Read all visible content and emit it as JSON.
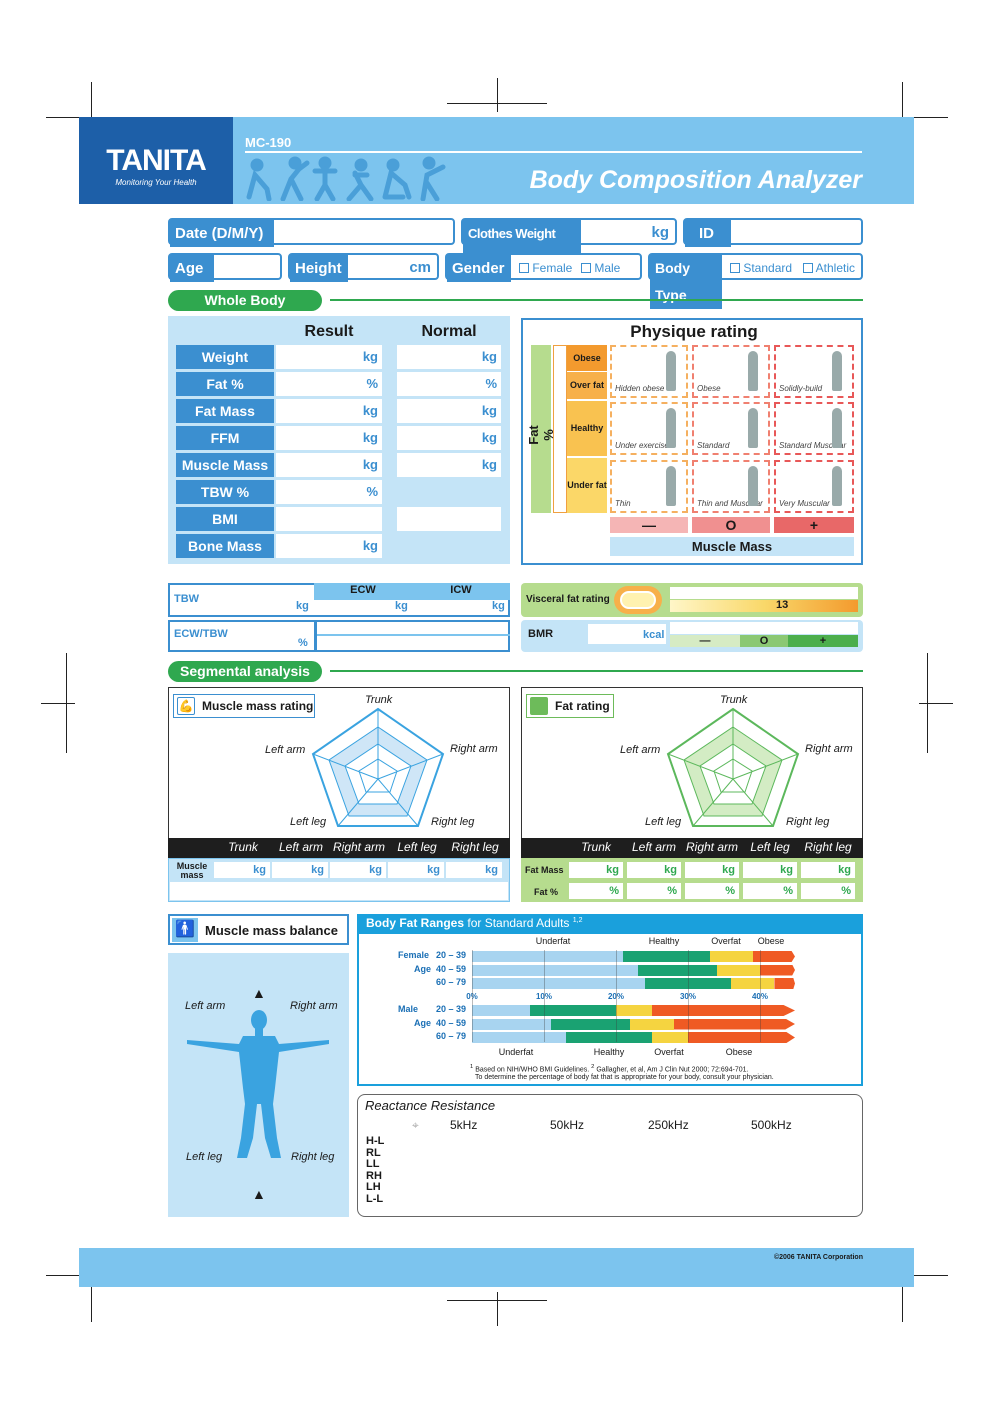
{
  "header": {
    "brand": "TANITA",
    "tagline": "Monitoring Your Health",
    "model": "MC-190",
    "title": "Body Composition Analyzer"
  },
  "fields": {
    "date": "Date (D/M/Y)",
    "clothes": "Clothes Weight (PT)",
    "clothes_unit": "kg",
    "id": "ID",
    "age": "Age",
    "height": "Height",
    "height_unit": "cm",
    "gender": "Gender",
    "female": "Female",
    "male": "Male",
    "body_type": "Body Type",
    "standard": "Standard",
    "athletic": "Athletic"
  },
  "whole_body": {
    "title": "Whole Body",
    "result": "Result",
    "normal": "Normal",
    "rows": [
      {
        "label": "Weight",
        "unit": "kg",
        "nunit": "kg"
      },
      {
        "label": "Fat %",
        "unit": "%",
        "nunit": "%"
      },
      {
        "label": "Fat Mass",
        "unit": "kg",
        "nunit": "kg"
      },
      {
        "label": "FFM",
        "unit": "kg",
        "nunit": "kg"
      },
      {
        "label": "Muscle Mass",
        "unit": "kg",
        "nunit": "kg"
      },
      {
        "label": "TBW %",
        "unit": "%",
        "nunit": ""
      },
      {
        "label": "BMI",
        "unit": "",
        "nunit": ""
      },
      {
        "label": "Bone Mass",
        "unit": "kg",
        "nunit": ""
      }
    ]
  },
  "physique": {
    "title": "Physique rating",
    "ylabel": "Fat %",
    "xlabel": "Muscle Mass",
    "levels": [
      "Obese",
      "Over fat",
      "Healthy",
      "Under fat"
    ],
    "minus": "—",
    "zero": "O",
    "plus": "+",
    "cells": [
      "Hidden obese",
      "Obese",
      "Solidly-build",
      "Under exercised",
      "Standard",
      "Standard Muscular",
      "Thin",
      "Thin and Muscular",
      "Very Muscular"
    ]
  },
  "water": {
    "tbw": "TBW",
    "ecw": "ECW",
    "icw": "ICW",
    "ratio": "ECW/TBW",
    "kg": "kg",
    "pct": "%"
  },
  "visceral": {
    "label": "Visceral fat rating",
    "value": "13",
    "bmr": "BMR",
    "bmr_unit": "kcal",
    "minus": "—",
    "zero": "O",
    "plus": "+"
  },
  "segmental": {
    "title": "Segmental analysis",
    "muscle_rating": "Muscle mass rating",
    "fat_rating": "Fat rating",
    "trunk": "Trunk",
    "left_arm": "Left arm",
    "right_arm": "Right arm",
    "left_leg": "Left leg",
    "right_leg": "Right leg",
    "muscle_mass": "Muscle mass",
    "fat_mass": "Fat Mass",
    "fat_pct": "Fat %",
    "kg": "kg",
    "pct": "%"
  },
  "balance": {
    "title": "Muscle mass balance",
    "left_arm": "Left arm",
    "right_arm": "Right arm",
    "left_leg": "Left leg",
    "right_leg": "Right leg"
  },
  "ranges": {
    "title": "Body Fat Ranges",
    "subtitle": "for Standard Adults",
    "sup": "1,2",
    "top_labels": [
      "Underfat",
      "Healthy",
      "Overfat",
      "Obese"
    ],
    "female": "Female",
    "male": "Male",
    "age": "Age",
    "ages": [
      "20 – 39",
      "40 – 59",
      "60 – 79"
    ],
    "ticks": [
      "0%",
      "10%",
      "20%",
      "30%",
      "40%"
    ],
    "bottom_labels": [
      "Underfat",
      "Healthy",
      "Overfat",
      "Obese"
    ],
    "note1": "Based on NIH/WHO BMI Guidelines.",
    "note2": "Gallagher, et al, Am J Clin Nut 2000; 72:694-701.",
    "note3": "To determine the percentage of body fat that is appropriate for your body, consult your physician.",
    "sup1": "1",
    "sup2": "2",
    "female_bounds": [
      [
        21,
        33,
        39
      ],
      [
        23,
        34,
        40
      ],
      [
        24,
        36,
        42
      ]
    ],
    "male_bounds": [
      [
        8,
        20,
        25
      ],
      [
        11,
        22,
        28
      ],
      [
        13,
        25,
        30
      ]
    ]
  },
  "reactance": {
    "title": "Reactance Resistance",
    "freqs": [
      "5kHz",
      "50kHz",
      "250kHz",
      "500kHz"
    ],
    "rows": [
      "H-L",
      "RL",
      "LL",
      "RH",
      "LH",
      "L-L"
    ]
  },
  "footer": {
    "copyright": "©2006 TANITA Corporation"
  },
  "colors": {
    "blue": "#3b8fd0",
    "light_blue": "#7cc4ee",
    "green": "#2fa84f",
    "orange": "#f39a2e"
  }
}
